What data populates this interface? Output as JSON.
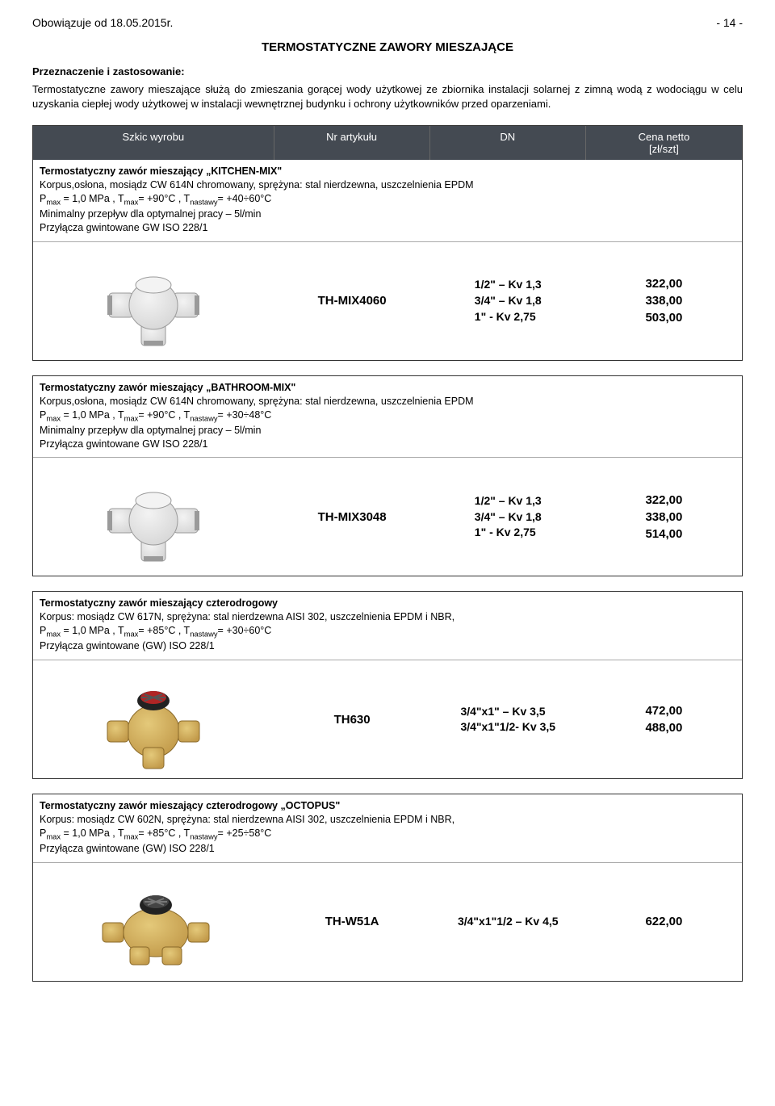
{
  "header": {
    "left": "Obowiązuje od 18.05.2015r.",
    "right": "- 14 -"
  },
  "title": "TERMOSTATYCZNE ZAWORY MIESZAJĄCE",
  "intro": {
    "label": "Przeznaczenie i zastosowanie:",
    "text": "Termostatyczne zawory mieszające służą do zmieszania gorącej wody użytkowej ze zbiornika instalacji solarnej z zimną wodą z wodociągu w celu uzyskania ciepłej wody użytkowej w instalacji wewnętrznej budynku i ochrony użytkowników przed oparzeniami."
  },
  "columns": {
    "sketch": "Szkic wyrobu",
    "article": "Nr artykułu",
    "dn": "DN",
    "price": "Cena netto\n[zł/szt]"
  },
  "sections": [
    {
      "title": "Termostatyczny zawór mieszający „KITCHEN-MIX\"",
      "lines": [
        "Korpus,osłona, mosiądz CW 614N chromowany, sprężyna: stal nierdzewna, uszczelnienia EPDM",
        "P max = 1,0 MPa , T max= +90°C , T nastawy= +40÷60°C",
        "Minimalny przepływ dla optymalnej pracy – 5l/min",
        "Przyłącza gwintowane GW ISO 228/1"
      ],
      "article": "TH-MIX4060",
      "dn": "1/2\" – Kv 1,3\n3/4\" – Kv 1,8\n1\"    - Kv 2,75",
      "price": "322,00\n338,00\n503,00",
      "image_type": "chrome-3way",
      "image_colors": {
        "body": "#d7d7d7",
        "shadow": "#9a9a9a",
        "cap": "#f3f3f3"
      }
    },
    {
      "title": "Termostatyczny zawór mieszający „BATHROOM-MIX\"",
      "lines": [
        "Korpus,osłona, mosiądz CW 614N chromowany, sprężyna: stal nierdzewna, uszczelnienia EPDM",
        "P max = 1,0 MPa , T max= +90°C , T nastawy= +30÷48°C",
        "Minimalny przepływ dla optymalnej pracy – 5l/min",
        "Przyłącza gwintowane GW ISO 228/1"
      ],
      "article": "TH-MIX3048",
      "dn": "1/2\" – Kv 1,3\n3/4\" – Kv 1,8\n1\"    - Kv 2,75",
      "price": "322,00\n338,00\n514,00",
      "image_type": "chrome-3way",
      "image_colors": {
        "body": "#d7d7d7",
        "shadow": "#9a9a9a",
        "cap": "#f3f3f3"
      }
    },
    {
      "title": "Termostatyczny zawór mieszający czterodrogowy",
      "lines": [
        "Korpus: mosiądz CW 617N, sprężyna: stal nierdzewna AISI 302, uszczelnienia EPDM i NBR,",
        "P max = 1,0 MPa , T max= +85°C , T nastawy= +30÷60°C",
        "Przyłącza gwintowane (GW) ISO 228/1"
      ],
      "article": "TH630",
      "dn": "3/4\"x1\" – Kv 3,5\n3/4\"x1\"1/2- Kv 3,5",
      "price": "472,00\n488,00",
      "image_type": "brass-4way",
      "image_colors": {
        "body": "#c29a4a",
        "shadow": "#8a6a2a",
        "knob": "#222",
        "knob_top": "#b02525"
      }
    },
    {
      "title": "Termostatyczny zawór mieszający czterodrogowy „OCTOPUS\"",
      "lines": [
        "Korpus: mosiądz CW 602N, sprężyna: stal nierdzewna AISI 302, uszczelnienia EPDM i NBR,",
        "P max = 1,0 MPa , T max= +85°C , T nastawy= +25÷58°C",
        "Przyłącza gwintowane (GW) ISO 228/1"
      ],
      "article": "TH-W51A",
      "dn": "3/4\"x1\"1/2 – Kv 4,5",
      "price": "622,00",
      "image_type": "brass-octopus",
      "image_colors": {
        "body": "#c29a4a",
        "shadow": "#8a6a2a",
        "knob": "#222",
        "knob_top": "#444"
      }
    }
  ]
}
